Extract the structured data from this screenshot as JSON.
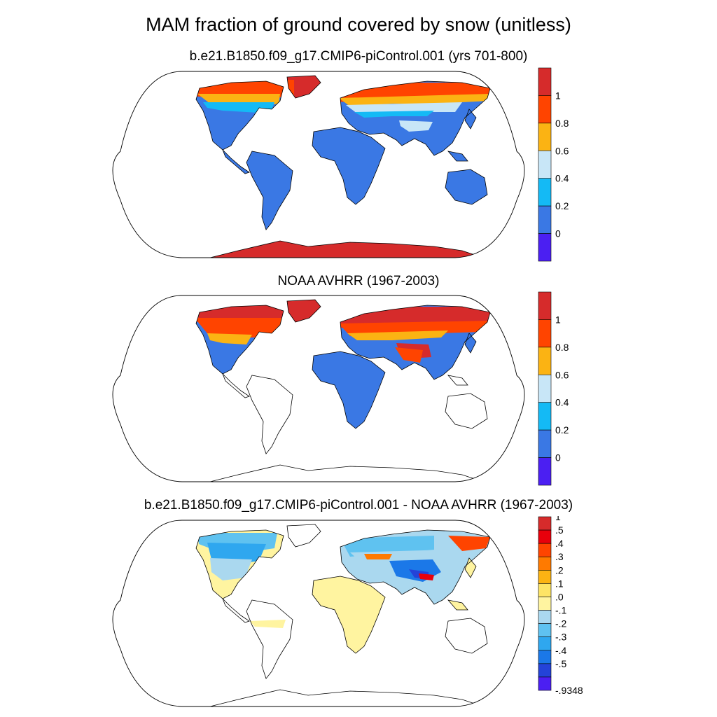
{
  "title": "MAM fraction of ground covered by snow (unitless)",
  "panels": [
    {
      "title": "b.e21.B1850.f09_g17.CMIP6-piControl.001 (yrs 701-800)",
      "colorbar": {
        "labels": [
          "1",
          "0.8",
          "0.6",
          "0.4",
          "0.2",
          "0"
        ],
        "colors": [
          "#d62b2b",
          "#ff4400",
          "#fbb313",
          "#c8e6f7",
          "#14baf5",
          "#3a78e4",
          "#4b1ff2"
        ]
      }
    },
    {
      "title": "NOAA AVHRR (1967-2003)",
      "colorbar": {
        "labels": [
          "1",
          "0.8",
          "0.6",
          "0.4",
          "0.2",
          "0"
        ],
        "colors": [
          "#d62b2b",
          "#ff4400",
          "#fbb313",
          "#c8e6f7",
          "#14baf5",
          "#3a78e4",
          "#4b1ff2"
        ]
      }
    },
    {
      "title": "b.e21.B1850.f09_g17.CMIP6-piControl.001 - NOAA AVHRR (1967-2003)",
      "colorbar": {
        "labels": [
          "1",
          ".5",
          ".4",
          ".3",
          ".2",
          ".1",
          ".0",
          "-.1",
          "-.2",
          "-.3",
          "-.4",
          "-.5",
          "-.9348"
        ],
        "colors": [
          "#d62b2b",
          "#e8000b",
          "#ff4400",
          "#ff7a00",
          "#fbb313",
          "#fde466",
          "#fff4a0",
          "#aad8ef",
          "#5fc2f0",
          "#2fa7ef",
          "#1b78e8",
          "#2443d8",
          "#4b1ff2"
        ]
      }
    }
  ]
}
